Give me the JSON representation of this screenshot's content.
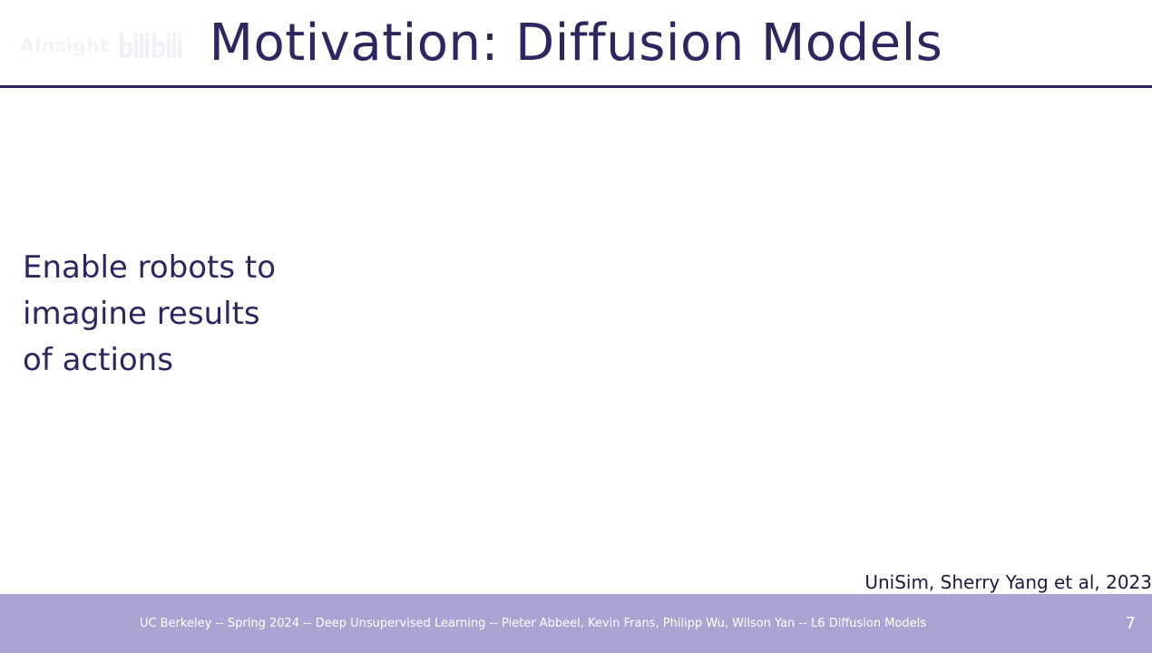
{
  "watermark": {
    "text": "AInsight"
  },
  "slide": {
    "title": "Motivation: Diffusion Models",
    "body_lines": [
      "Enable robots to",
      "imagine results",
      "of actions"
    ],
    "citation": "UniSim, Sherry Yang et al, 2023"
  },
  "footer": {
    "text": "UC Berkeley -- Spring 2024 -- Deep Unsupervised Learning -- Pieter Abbeel, Kevin Frans, Philipp Wu, Wilson Yan  -- L6 Diffusion Models",
    "page_number": "7"
  },
  "colors": {
    "title": "#2b2760",
    "footer_bar": "#a9a4d1",
    "footer_text": "#ffffff"
  }
}
